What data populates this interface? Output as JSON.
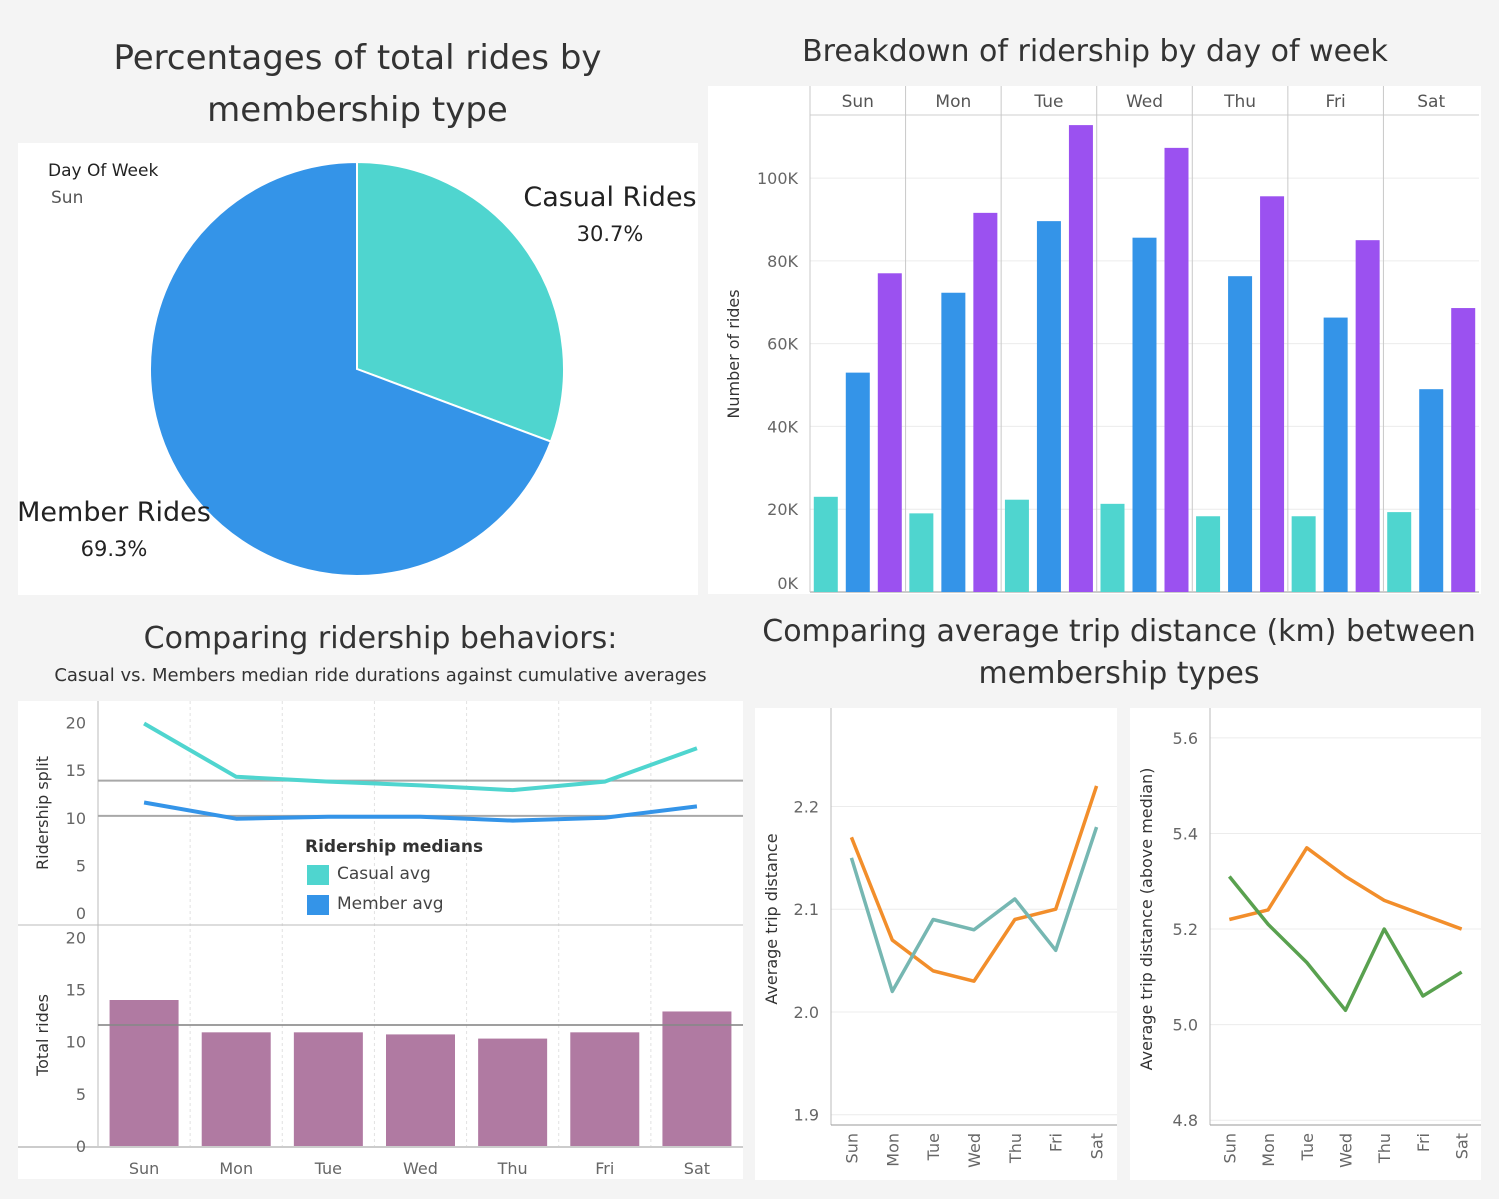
{
  "titles": {
    "pie": "Percentages of total rides by membership type",
    "bars": "Breakdown of ridership by day of week",
    "behaviors": "Comparing ridership behaviors:",
    "behaviors_sub": "Casual vs. Members median ride durations against cumulative averages",
    "distance": "Comparing average trip distance (km) between membership types"
  },
  "colors": {
    "casual": "#4fd5cf",
    "member": "#3494e8",
    "total": "#9b51f0",
    "rides_bar": "#b07aa2",
    "dist_orange": "#f28e2b",
    "dist_teal": "#76b7b2",
    "dist_green": "#59a14f"
  },
  "chart_data": [
    {
      "type": "pie",
      "filter_label": "Day Of Week",
      "filter_value": "Sun",
      "slices": [
        {
          "label": "Casual Rides",
          "value": 30.7,
          "display": "30.7%"
        },
        {
          "label": "Member Rides",
          "value": 69.3,
          "display": "69.3%"
        }
      ]
    },
    {
      "type": "bar",
      "categories": [
        "Sun",
        "Mon",
        "Tue",
        "Wed",
        "Thu",
        "Fri",
        "Sat"
      ],
      "ylabel": "Number of rides",
      "ylim": [
        0,
        115000
      ],
      "yticks": [
        0,
        20000,
        40000,
        60000,
        80000,
        100000
      ],
      "ytick_labels": [
        "0K",
        "20K",
        "40K",
        "60K",
        "80K",
        "100K"
      ],
      "series": [
        {
          "values": [
            23000,
            19000,
            22300,
            21300,
            18300,
            18300,
            19300
          ]
        },
        {
          "values": [
            53000,
            72300,
            89600,
            85600,
            76300,
            66300,
            49000
          ]
        },
        {
          "values": [
            77000,
            91600,
            112800,
            107300,
            95600,
            85000,
            68600
          ]
        }
      ]
    },
    {
      "type": "line",
      "categories": [
        "Sun",
        "Mon",
        "Tue",
        "Wed",
        "Thu",
        "Fri",
        "Sat"
      ],
      "ylabel": "Ridership split",
      "ylim": [
        0,
        21
      ],
      "yticks": [
        0,
        5,
        10,
        15,
        20
      ],
      "legend_title": "Ridership medians",
      "series": [
        {
          "name": "Casual avg",
          "values": [
            19.9,
            14.3,
            13.8,
            13.4,
            12.9,
            13.8,
            17.3
          ]
        },
        {
          "name": "Member avg",
          "values": [
            11.6,
            9.9,
            10.1,
            10.1,
            9.7,
            10.0,
            11.2
          ]
        }
      ],
      "reference_lines": [
        13.9,
        10.2
      ]
    },
    {
      "type": "bar",
      "categories": [
        "Sun",
        "Mon",
        "Tue",
        "Wed",
        "Thu",
        "Fri",
        "Sat"
      ],
      "ylabel": "Total rides",
      "ylim": [
        0,
        21
      ],
      "yticks": [
        0,
        5,
        10,
        15,
        20
      ],
      "values": [
        14.0,
        10.9,
        10.9,
        10.7,
        10.3,
        10.9,
        12.9
      ],
      "reference_line": 11.6
    },
    {
      "type": "line",
      "categories": [
        "Sun",
        "Mon",
        "Tue",
        "Wed",
        "Thu",
        "Fri",
        "Sat"
      ],
      "ylabel": "Average trip distance",
      "ylim": [
        1.89,
        2.29
      ],
      "yticks": [
        1.9,
        2.0,
        2.1,
        2.2
      ],
      "ytick_labels": [
        "1.9",
        "2.0",
        "2.1",
        "2.2"
      ],
      "series": [
        {
          "values": [
            2.17,
            2.07,
            2.04,
            2.03,
            2.09,
            2.1,
            2.22
          ]
        },
        {
          "values": [
            2.15,
            2.02,
            2.09,
            2.08,
            2.11,
            2.06,
            2.18
          ]
        }
      ]
    },
    {
      "type": "line",
      "categories": [
        "Sun",
        "Mon",
        "Tue",
        "Wed",
        "Thu",
        "Fri",
        "Sat"
      ],
      "ylabel": "Average trip distance (above median)",
      "ylim": [
        4.79,
        5.65
      ],
      "yticks": [
        4.8,
        5.0,
        5.2,
        5.4,
        5.6
      ],
      "ytick_labels": [
        "4.8",
        "5.0",
        "5.2",
        "5.4",
        "5.6"
      ],
      "series": [
        {
          "values": [
            5.22,
            5.24,
            5.37,
            5.31,
            5.26,
            5.23,
            5.2
          ]
        },
        {
          "values": [
            5.31,
            5.21,
            5.13,
            5.03,
            5.2,
            5.06,
            5.11
          ]
        }
      ]
    }
  ]
}
